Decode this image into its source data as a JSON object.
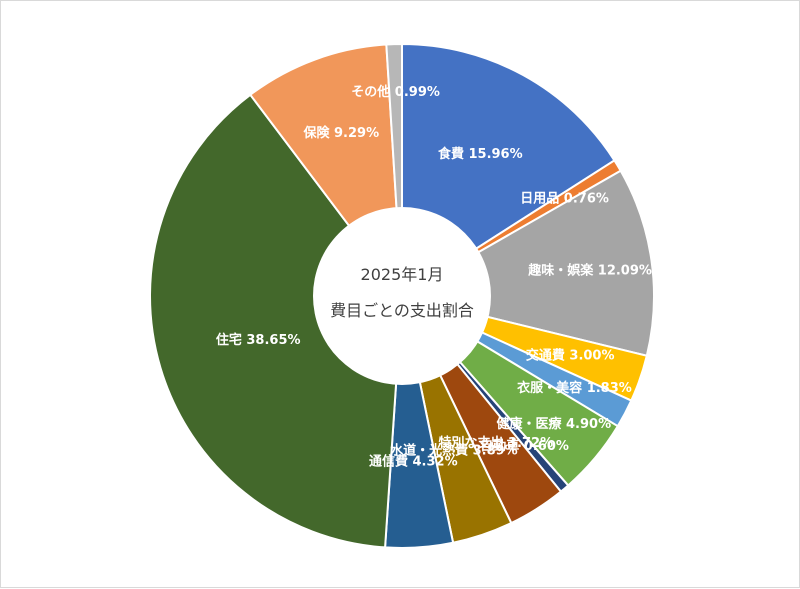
{
  "chart_data": {
    "type": "pie",
    "variant": "donut",
    "title": "2025年1月",
    "subtitle": "費目ごとの支出割合",
    "unit": "%",
    "legend": "none",
    "slices": [
      {
        "label": "食費",
        "value": 15.96,
        "display": "15.96%",
        "color": "#4472c4"
      },
      {
        "label": "日用品",
        "value": 0.76,
        "display": "0.76%",
        "color": "#ed7d31"
      },
      {
        "label": "趣味・娯楽",
        "value": 12.09,
        "display": "12.09%",
        "color": "#a5a5a5"
      },
      {
        "label": "交通費",
        "value": 3.0,
        "display": "3.00%",
        "color": "#ffc000"
      },
      {
        "label": "衣服・美容",
        "value": 1.83,
        "display": "1.83%",
        "color": "#5b9bd5"
      },
      {
        "label": "健康・医療",
        "value": 4.9,
        "display": "4.90%",
        "color": "#70ad47"
      },
      {
        "label": "自動車",
        "value": 0.6,
        "display": "0.60%",
        "color": "#264478"
      },
      {
        "label": "特別な支出",
        "value": 3.72,
        "display": "3.72%",
        "color": "#9e480e"
      },
      {
        "label": "水道・光熱費",
        "value": 3.89,
        "display": "3.89%",
        "color": "#997300"
      },
      {
        "label": "通信費",
        "value": 4.32,
        "display": "4.32%",
        "color": "#255e91"
      },
      {
        "label": "住宅",
        "value": 38.65,
        "display": "38.65%",
        "color": "#43682b"
      },
      {
        "label": "保険",
        "value": 9.29,
        "display": "9.29%",
        "color": "#f1975a"
      },
      {
        "label": "その他",
        "value": 0.99,
        "display": "0.99%",
        "color": "#b7b7b7"
      }
    ]
  }
}
